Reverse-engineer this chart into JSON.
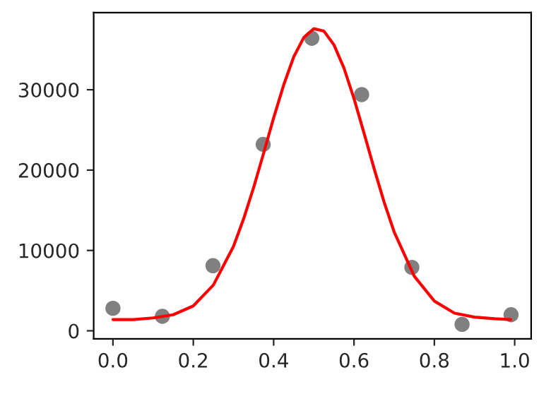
{
  "chart_data": {
    "type": "line",
    "xlim": [
      -0.048,
      1.041
    ],
    "ylim": [
      -1000,
      39600
    ],
    "xticks": [
      {
        "value": 0,
        "label": "0.0"
      },
      {
        "value": 0.2,
        "label": "0.2"
      },
      {
        "value": 0.4,
        "label": "0.4"
      },
      {
        "value": 0.6,
        "label": "0.6"
      },
      {
        "value": 0.8,
        "label": "0.8"
      },
      {
        "value": 1,
        "label": "1.0"
      }
    ],
    "yticks": [
      0,
      10000,
      20000,
      30000
    ],
    "grid": false,
    "series": [
      {
        "type": "scatter",
        "color": "#808080",
        "marker": "circle",
        "x": [
          0,
          0.123,
          0.249,
          0.374,
          0.495,
          0.619,
          0.744,
          0.869,
          0.991
        ],
        "values": [
          2800,
          1800,
          8100,
          23200,
          36400,
          29400,
          7900,
          800,
          2000
        ]
      },
      {
        "color": "#ff0000",
        "marker": "none",
        "line_style": "solid",
        "x": [
          0,
          0.05,
          0.1,
          0.15,
          0.2,
          0.25,
          0.3,
          0.325,
          0.35,
          0.375,
          0.4,
          0.425,
          0.45,
          0.475,
          0.5,
          0.525,
          0.55,
          0.575,
          0.6,
          0.625,
          0.65,
          0.675,
          0.7,
          0.75,
          0.8,
          0.85,
          0.9,
          0.95,
          0.99
        ],
        "values": [
          1400,
          1400,
          1600,
          2000,
          3100,
          5700,
          10500,
          13900,
          17800,
          22100,
          26500,
          30600,
          34100,
          36500,
          37600,
          37300,
          35600,
          32700,
          28900,
          24600,
          20200,
          16000,
          12300,
          6800,
          3700,
          2200,
          1700,
          1500,
          1400
        ]
      }
    ]
  }
}
